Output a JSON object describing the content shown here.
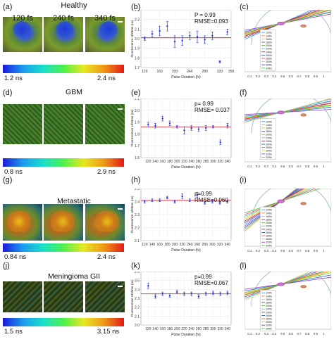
{
  "rows": [
    {
      "title": "Healthy",
      "image_labels": [
        "120 fs",
        "240 fs",
        "340 fs"
      ],
      "colorbar_min": "1.2 ns",
      "colorbar_max": "2.4 ns",
      "panel_letters": {
        "image": "(a)",
        "chart": "(b)",
        "phasor": "(c)"
      },
      "stats": [
        "P = 0.99",
        "RMSE=0.093"
      ],
      "image_style": "healthy"
    },
    {
      "title": "GBM",
      "image_labels": [
        "",
        "",
        ""
      ],
      "colorbar_min": "0.8 ns",
      "colorbar_max": "2.9 ns",
      "panel_letters": {
        "image": "(d)",
        "chart": "(e)",
        "phasor": "(f)"
      },
      "stats": [
        "p= 0.99",
        "RMSE= 0.037"
      ],
      "image_style": "gbm"
    },
    {
      "title": "Metastatic",
      "image_labels": [
        "",
        "",
        ""
      ],
      "colorbar_min": "0.84 ns",
      "colorbar_max": "2.4 ns",
      "panel_letters": {
        "image": "(g)",
        "chart": "(h)",
        "phasor": "(i)"
      },
      "stats": [
        "p=0.99",
        "RMSE=0.060"
      ],
      "image_style": "meta"
    },
    {
      "title": "Meningioma GII",
      "image_labels": [
        "",
        "",
        ""
      ],
      "colorbar_min": "1.5 ns",
      "colorbar_max": "3.15 ns",
      "panel_letters": {
        "image": "(j)",
        "chart": "(k)",
        "phasor": "(l)"
      },
      "stats": [
        "p=0.99",
        "RMSE=0.067"
      ],
      "image_style": "men"
    }
  ],
  "chart_data": [
    {
      "type": "scatter",
      "title": "",
      "xlabel": "Pulse Duration (fs)",
      "ylabel": "Fluorescence Lifetime (ns)",
      "xlim": [
        110,
        350
      ],
      "ylim": [
        1.7,
        2.3
      ],
      "xticks": [
        120,
        160,
        200,
        240,
        280,
        320,
        350
      ],
      "yticks": [
        1.7,
        1.8,
        1.9,
        2.0,
        2.1,
        2.2,
        2.3
      ],
      "x": [
        120,
        140,
        160,
        180,
        200,
        220,
        240,
        260,
        280,
        300,
        320,
        340
      ],
      "y": [
        2.0,
        2.05,
        2.08,
        2.13,
        1.97,
        1.98,
        2.03,
        2.02,
        1.99,
        2.03,
        1.76,
        2.07
      ],
      "err": [
        0.02,
        0.03,
        0.05,
        0.05,
        0.06,
        0.05,
        0.04,
        0.06,
        0.04,
        0.04,
        0.01,
        0.03
      ],
      "fit": 2.01,
      "grid": true
    },
    {
      "type": "scatter",
      "title": "",
      "xlabel": "Pulse Duration (fs)",
      "ylabel": "Fluorescence Lifetime (ns)",
      "xlim": [
        100,
        350
      ],
      "ylim": [
        1.6,
        2.1
      ],
      "xticks": [
        120,
        140,
        160,
        180,
        200,
        220,
        240,
        260,
        280,
        300,
        320,
        340
      ],
      "yticks": [
        1.6,
        1.7,
        1.8,
        1.9,
        2.0,
        2.1
      ],
      "x": [
        120,
        140,
        160,
        180,
        200,
        220,
        240,
        260,
        280,
        300,
        320,
        340
      ],
      "y": [
        1.88,
        1.87,
        1.93,
        1.89,
        1.86,
        1.83,
        1.85,
        1.84,
        1.85,
        1.86,
        1.73,
        1.87
      ],
      "err": [
        0.02,
        0.02,
        0.02,
        0.02,
        0.01,
        0.03,
        0.02,
        0.02,
        0.02,
        0.01,
        0.02,
        0.02
      ],
      "fit": 1.86,
      "grid": true
    },
    {
      "type": "scatter",
      "title": "",
      "xlabel": "Pulse Duration (fs)",
      "ylabel": "Fluorescence Lifetime (ns)",
      "xlim": [
        110,
        350
      ],
      "ylim": [
        2.1,
        2.5
      ],
      "xticks": [
        120,
        140,
        160,
        180,
        200,
        220,
        240,
        260,
        280,
        300,
        320,
        340
      ],
      "yticks": [
        2.1,
        2.2,
        2.3,
        2.4,
        2.5
      ],
      "x": [
        120,
        140,
        160,
        180,
        200,
        220,
        240,
        260,
        280,
        300,
        320,
        340
      ],
      "y": [
        2.4,
        2.41,
        2.41,
        2.43,
        2.4,
        2.44,
        2.41,
        2.45,
        2.39,
        2.4,
        2.39,
        2.4
      ],
      "err": [
        0.01,
        0.01,
        0.01,
        0.01,
        0.01,
        0.02,
        0.01,
        0.02,
        0.01,
        0.01,
        0.01,
        0.01
      ],
      "fit": 2.41,
      "grid": true
    },
    {
      "type": "scatter",
      "title": "",
      "xlabel": "Pulse Duration (fs)",
      "ylabel": "Fluorescence Lifetime (ns)",
      "xlim": [
        100,
        350
      ],
      "ylim": [
        2.0,
        2.6
      ],
      "xticks": [
        120,
        140,
        160,
        180,
        200,
        220,
        240,
        260,
        280,
        300,
        320,
        340
      ],
      "yticks": [
        2.0,
        2.1,
        2.2,
        2.3,
        2.4,
        2.5,
        2.6
      ],
      "x": [
        120,
        140,
        160,
        180,
        200,
        220,
        240,
        260,
        280,
        300,
        320,
        340
      ],
      "y": [
        2.44,
        2.32,
        2.35,
        2.33,
        2.37,
        2.35,
        2.35,
        2.32,
        2.35,
        2.36,
        2.35,
        2.36
      ],
      "err": [
        0.03,
        0.02,
        0.02,
        0.02,
        0.02,
        0.02,
        0.02,
        0.02,
        0.02,
        0.02,
        0.02,
        0.02
      ],
      "fit": 2.35,
      "grid": true
    }
  ],
  "phasor": {
    "xticks": [
      "0.1",
      "0.2",
      "0.3",
      "0.4",
      "0.5",
      "0.6",
      "0.7",
      "0.8",
      "0.9",
      "1"
    ],
    "legend": [
      "120fs",
      "140fs",
      "160fs",
      "180fs",
      "200fs",
      "220fs",
      "240fs",
      "260fs",
      "280fs",
      "300fs",
      "320fs",
      "340fs"
    ],
    "legend_colors": [
      "#4aa0ff",
      "#ff8c3a",
      "#e3c14a",
      "#7b3fa0",
      "#62c23a",
      "#3ec7e8",
      "#b02840",
      "#2060d0",
      "#ff5050",
      "#f0d020",
      "#8a3ad0",
      "#48c848"
    ]
  }
}
